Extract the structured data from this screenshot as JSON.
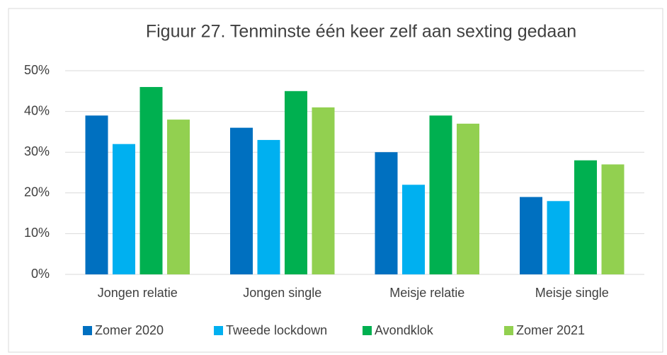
{
  "chart_data": {
    "type": "bar",
    "title": "Figuur 27. Tenminste één keer zelf aan sexting gedaan",
    "categories": [
      "Jongen relatie",
      "Jongen single",
      "Meisje relatie",
      "Meisje single"
    ],
    "series": [
      {
        "name": "Zomer 2020",
        "color": "#0070c0",
        "values": [
          39,
          36,
          30,
          19
        ]
      },
      {
        "name": "Tweede lockdown",
        "color": "#00b0f0",
        "values": [
          32,
          33,
          22,
          18
        ]
      },
      {
        "name": "Avondklok",
        "color": "#00b050",
        "values": [
          46,
          45,
          39,
          28
        ]
      },
      {
        "name": "Zomer 2021",
        "color": "#92d050",
        "values": [
          38,
          41,
          37,
          27
        ]
      }
    ],
    "ylim": [
      0,
      50
    ],
    "yticks": [
      {
        "value": 0,
        "label": "0%"
      },
      {
        "value": 10,
        "label": "10%"
      },
      {
        "value": 20,
        "label": "20%"
      },
      {
        "value": 30,
        "label": "30%"
      },
      {
        "value": 40,
        "label": "40%"
      },
      {
        "value": 50,
        "label": "50%"
      }
    ],
    "grid": true,
    "legend": "bottom"
  }
}
